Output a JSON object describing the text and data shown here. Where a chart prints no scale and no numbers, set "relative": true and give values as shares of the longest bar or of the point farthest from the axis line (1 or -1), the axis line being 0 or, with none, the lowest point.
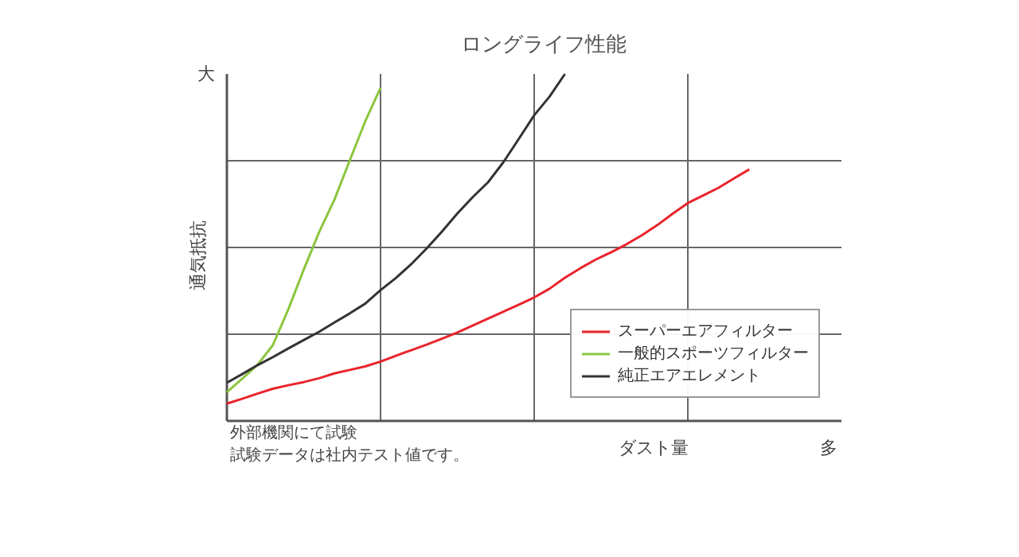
{
  "chart_data": {
    "type": "line",
    "title": "ロングライフ性能",
    "xlabel": "ダスト量",
    "ylabel": "通気抵抗",
    "relative": true,
    "annotations": [
      "大",
      "多",
      "外部機関にて試験",
      "試験データは社内テスト値です。"
    ],
    "categories": [
      null,
      null,
      null,
      null,
      null,
      null,
      null,
      null,
      null,
      null,
      null,
      null,
      null,
      null,
      null,
      null,
      null,
      null,
      null,
      null,
      null,
      null,
      null,
      null,
      null,
      null,
      null,
      null,
      null,
      null,
      null,
      null,
      null,
      null,
      null,
      null,
      null,
      null,
      null,
      null,
      null
    ],
    "grid": true,
    "legend": "bottom right",
    "line_style": "solid",
    "series": [
      {
        "name": "スーパーエアフィルター",
        "color": "#e8242c",
        "values": [
          0.05,
          0.064,
          0.079,
          0.093,
          0.103,
          0.112,
          0.123,
          0.137,
          0.147,
          0.157,
          0.171,
          0.188,
          0.204,
          0.22,
          0.237,
          0.255,
          0.275,
          0.295,
          0.315,
          0.335,
          0.356,
          0.381,
          0.413,
          0.44,
          0.465,
          0.486,
          0.509,
          0.535,
          0.564,
          0.597,
          0.628,
          0.65,
          0.672,
          0.699,
          0.725,
          null,
          null,
          null,
          null,
          null,
          null
        ]
      },
      {
        "name": "一般的スポーツフィルター",
        "color": "#8cc63f",
        "values": [
          0.083,
          0.122,
          0.162,
          0.219,
          0.322,
          0.436,
          0.544,
          0.638,
          0.751,
          0.863,
          0.96,
          null,
          null,
          null,
          null,
          null,
          null,
          null,
          null,
          null,
          null,
          null,
          null,
          null,
          null,
          null,
          null,
          null,
          null,
          null,
          null,
          null,
          null,
          null,
          null,
          null,
          null,
          null,
          null,
          null,
          null
        ]
      },
      {
        "name": "純正エアエレメント",
        "color": "#333333",
        "values": [
          0.11,
          0.135,
          0.161,
          0.184,
          0.209,
          0.233,
          0.257,
          0.284,
          0.31,
          0.338,
          0.377,
          0.412,
          0.452,
          0.497,
          0.546,
          0.598,
          0.645,
          0.688,
          0.746,
          0.813,
          0.881,
          0.935,
          1.0,
          null,
          null,
          null,
          null,
          null,
          null,
          null,
          null,
          null,
          null,
          null,
          null,
          null,
          null,
          null,
          null,
          null,
          null
        ]
      }
    ]
  }
}
